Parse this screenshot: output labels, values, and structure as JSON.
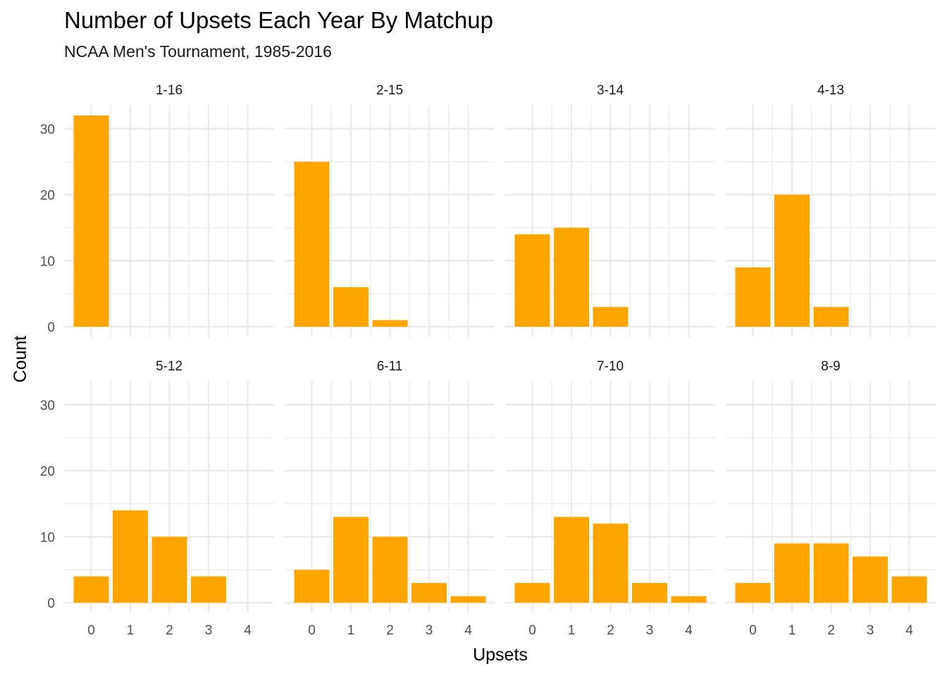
{
  "chart_data": {
    "type": "bar",
    "title": "Number of Upsets Each Year By Matchup",
    "subtitle": "NCAA Men's Tournament, 1985-2016",
    "xlabel": "Upsets",
    "ylabel": "Count",
    "x_categories": [
      "0",
      "1",
      "2",
      "3",
      "4"
    ],
    "y_ticks": [
      0,
      10,
      20,
      30
    ],
    "ylim": [
      0,
      33.6
    ],
    "grid": true,
    "bar_color": "#FFA500",
    "facets": [
      {
        "label": "1-16",
        "values": [
          32,
          0,
          0,
          0,
          0
        ]
      },
      {
        "label": "2-15",
        "values": [
          25,
          6,
          1,
          0,
          0
        ]
      },
      {
        "label": "3-14",
        "values": [
          14,
          15,
          3,
          0,
          0
        ]
      },
      {
        "label": "4-13",
        "values": [
          9,
          20,
          3,
          0,
          0
        ]
      },
      {
        "label": "5-12",
        "values": [
          4,
          14,
          10,
          4,
          0
        ]
      },
      {
        "label": "6-11",
        "values": [
          5,
          13,
          10,
          3,
          1
        ]
      },
      {
        "label": "7-10",
        "values": [
          3,
          13,
          12,
          3,
          1
        ]
      },
      {
        "label": "8-9",
        "values": [
          3,
          9,
          9,
          7,
          4
        ]
      }
    ]
  }
}
